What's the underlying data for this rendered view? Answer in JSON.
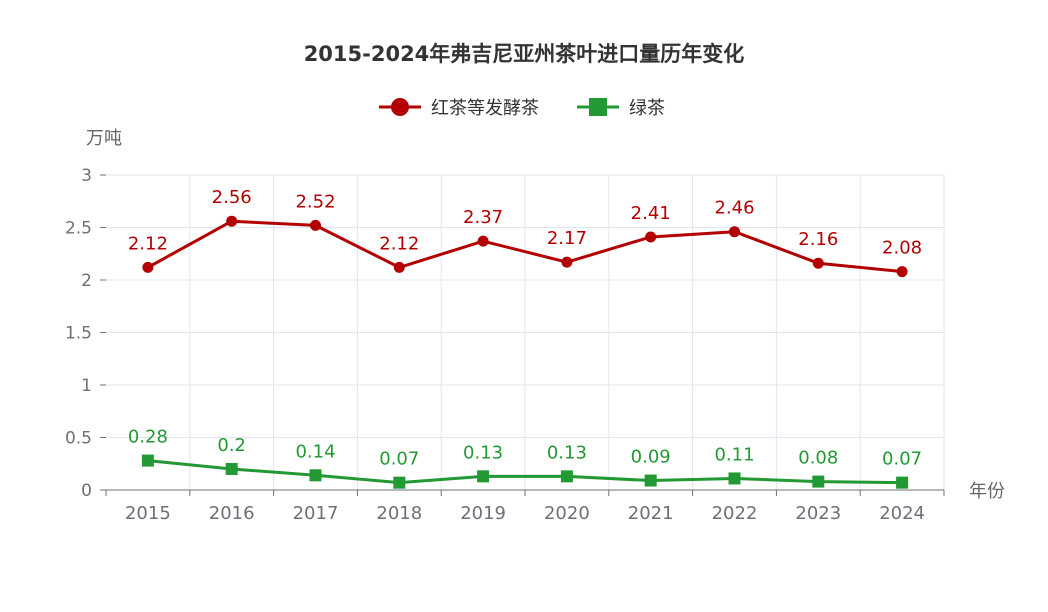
{
  "chart_data": {
    "type": "line",
    "title": "2015-2024年弗吉尼亚州茶叶进口量历年变化",
    "xlabel": "年份",
    "ylabel": "万吨",
    "categories": [
      "2015",
      "2016",
      "2017",
      "2018",
      "2019",
      "2020",
      "2021",
      "2022",
      "2023",
      "2024"
    ],
    "ylim": [
      0,
      3
    ],
    "yticks": [
      "0",
      "0.5",
      "1",
      "1.5",
      "2",
      "2.5",
      "3"
    ],
    "grid": true,
    "legend_position": "top-center",
    "series": [
      {
        "name": "红茶等发酵茶",
        "color": "#b30000",
        "marker": "circle",
        "values": [
          2.12,
          2.56,
          2.52,
          2.12,
          2.37,
          2.17,
          2.41,
          2.46,
          2.16,
          2.08
        ]
      },
      {
        "name": "绿茶",
        "color": "#229933",
        "marker": "square",
        "values": [
          0.28,
          0.2,
          0.14,
          0.07,
          0.13,
          0.13,
          0.09,
          0.11,
          0.08,
          0.07
        ]
      }
    ]
  }
}
